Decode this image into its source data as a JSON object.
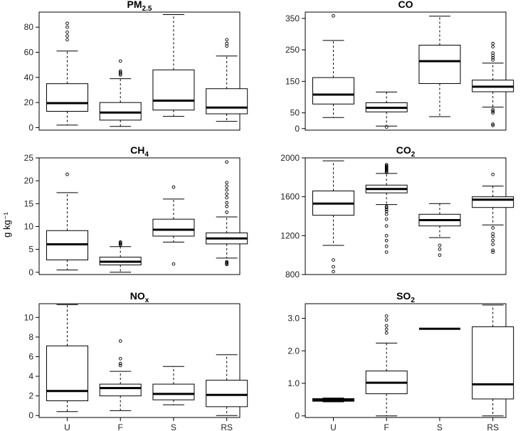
{
  "ylabel": "g kg⁻¹",
  "chart_data": [
    {
      "type": "boxplot",
      "title": "PM2.5",
      "title_main": "PM",
      "title_sub": "2.5",
      "categories": [
        "U",
        "F",
        "S",
        "RS"
      ],
      "ylim": [
        -2,
        92
      ],
      "yticks": [
        0,
        20,
        40,
        60,
        80
      ],
      "tick_labels": [
        "0",
        "20",
        "40",
        "60",
        "80"
      ],
      "show_x_labels": false,
      "boxes": [
        {
          "whisker_low": 2,
          "q1": 13,
          "median": 19.5,
          "q3": 35,
          "whisker_high": 61,
          "outliers": [
            70,
            73,
            76,
            80,
            83
          ]
        },
        {
          "whisker_low": 1,
          "q1": 6,
          "median": 12,
          "q3": 20,
          "whisker_high": 39,
          "outliers": [
            42,
            43,
            44,
            45,
            53
          ]
        },
        {
          "whisker_low": 9,
          "q1": 14,
          "median": 21.5,
          "q3": 46,
          "whisker_high": 90,
          "outliers": []
        },
        {
          "whisker_low": 5,
          "q1": 11,
          "median": 16,
          "q3": 31,
          "whisker_high": 57,
          "outliers": [
            65,
            67,
            70
          ]
        }
      ]
    },
    {
      "type": "boxplot",
      "title": "CO",
      "title_main": "CO",
      "title_sub": "",
      "categories": [
        "U",
        "F",
        "S",
        "RS"
      ],
      "ylim": [
        -5,
        370
      ],
      "yticks": [
        0,
        50,
        150,
        250,
        350
      ],
      "tick_labels": [
        "0",
        "50",
        "150",
        "250",
        "350"
      ],
      "show_x_labels": false,
      "boxes": [
        {
          "whisker_low": 35,
          "q1": 78,
          "median": 108,
          "q3": 162,
          "whisker_high": 280,
          "outliers": [
            358
          ]
        },
        {
          "whisker_low": 8,
          "q1": 53,
          "median": 66,
          "q3": 82,
          "whisker_high": 116,
          "outliers": [
            5
          ]
        },
        {
          "whisker_low": 38,
          "q1": 143,
          "median": 214,
          "q3": 265,
          "whisker_high": 357,
          "outliers": []
        },
        {
          "whisker_low": 68,
          "q1": 117,
          "median": 133,
          "q3": 154,
          "whisker_high": 208,
          "outliers": [
            10,
            14,
            50,
            55,
            60,
            218,
            225,
            232,
            240,
            260,
            270
          ]
        }
      ]
    },
    {
      "type": "boxplot",
      "title": "CH4",
      "title_main": "CH",
      "title_sub": "4",
      "categories": [
        "U",
        "F",
        "S",
        "RS"
      ],
      "ylim": [
        -0.5,
        25
      ],
      "yticks": [
        0,
        5,
        10,
        15,
        20,
        25
      ],
      "tick_labels": [
        "0",
        "5",
        "10",
        "15",
        "20",
        "25"
      ],
      "show_x_labels": false,
      "boxes": [
        {
          "whisker_low": 0.5,
          "q1": 2.7,
          "median": 6.1,
          "q3": 9.1,
          "whisker_high": 17.4,
          "outliers": [
            21.4
          ]
        },
        {
          "whisker_low": 0,
          "q1": 1.6,
          "median": 2.3,
          "q3": 3.3,
          "whisker_high": 5.6,
          "outliers": [
            6.0,
            6.2,
            6.4,
            6.6
          ]
        },
        {
          "whisker_low": 6.6,
          "q1": 7.9,
          "median": 9.3,
          "q3": 11.6,
          "whisker_high": 16.0,
          "outliers": [
            1.8,
            18.6
          ]
        },
        {
          "whisker_low": 3.1,
          "q1": 6.2,
          "median": 7.4,
          "q3": 8.6,
          "whisker_high": 12.1,
          "outliers": [
            1.7,
            1.9,
            2.1,
            2.3,
            13.1,
            14.4,
            15.2,
            16.3,
            17.1,
            18.0,
            18.8,
            19.6,
            24.1
          ]
        }
      ]
    },
    {
      "type": "boxplot",
      "title": "CO2",
      "title_main": "CO",
      "title_sub": "2",
      "categories": [
        "U",
        "F",
        "S",
        "RS"
      ],
      "ylim": [
        800,
        2000
      ],
      "yticks": [
        800,
        1200,
        1600,
        2000
      ],
      "tick_labels": [
        "800",
        "1200",
        "1600",
        "2000"
      ],
      "show_x_labels": false,
      "boxes": [
        {
          "whisker_low": 1100,
          "q1": 1410,
          "median": 1530,
          "q3": 1660,
          "whisker_high": 1970,
          "outliers": [
            830,
            880,
            950
          ]
        },
        {
          "whisker_low": 1520,
          "q1": 1640,
          "median": 1680,
          "q3": 1720,
          "whisker_high": 1840,
          "outliers": [
            1030,
            1090,
            1150,
            1200,
            1300,
            1370,
            1420,
            1450,
            1470,
            1490,
            1500,
            1850,
            1860,
            1870,
            1880,
            1890,
            1900,
            1910,
            1920,
            1930
          ]
        },
        {
          "whisker_low": 1180,
          "q1": 1300,
          "median": 1360,
          "q3": 1420,
          "whisker_high": 1530,
          "outliers": [
            1000,
            1060,
            1100
          ]
        },
        {
          "whisker_low": 1310,
          "q1": 1490,
          "median": 1570,
          "q3": 1600,
          "whisker_high": 1710,
          "outliers": [
            1030,
            1050,
            1110,
            1150,
            1190,
            1220,
            1280,
            1830
          ]
        }
      ]
    },
    {
      "type": "boxplot",
      "title": "NOx",
      "title_main": "NO",
      "title_sub": "x",
      "categories": [
        "U",
        "F",
        "S",
        "RS"
      ],
      "ylim": [
        -0.2,
        11.4
      ],
      "yticks": [
        0,
        2,
        4,
        6,
        8,
        10
      ],
      "tick_labels": [
        "0",
        "2",
        "4",
        "6",
        "8",
        "10"
      ],
      "show_x_labels": true,
      "boxes": [
        {
          "whisker_low": 0.4,
          "q1": 1.5,
          "median": 2.5,
          "q3": 7.1,
          "whisker_high": 11.3,
          "outliers": []
        },
        {
          "whisker_low": 0.5,
          "q1": 2.0,
          "median": 2.8,
          "q3": 3.2,
          "whisker_high": 4.5,
          "outliers": [
            5.1,
            5.3,
            5.8,
            7.6
          ]
        },
        {
          "whisker_low": 1.1,
          "q1": 1.6,
          "median": 2.2,
          "q3": 3.2,
          "whisker_high": 5.0,
          "outliers": []
        },
        {
          "whisker_low": 0.0,
          "q1": 0.9,
          "median": 2.1,
          "q3": 3.6,
          "whisker_high": 6.2,
          "outliers": []
        }
      ]
    },
    {
      "type": "boxplot",
      "title": "SO2",
      "title_main": "SO",
      "title_sub": "2",
      "categories": [
        "U",
        "F",
        "S",
        "RS"
      ],
      "ylim": [
        -0.05,
        3.45
      ],
      "yticks": [
        0,
        1.0,
        2.0,
        3.0
      ],
      "tick_labels": [
        "0",
        "1.0",
        "2.0",
        "3.0"
      ],
      "show_x_labels": true,
      "boxes": [
        {
          "whisker_low": 0.43,
          "q1": 0.45,
          "median": 0.49,
          "q3": 0.53,
          "whisker_high": 0.55,
          "outliers": []
        },
        {
          "whisker_low": 0.0,
          "q1": 0.68,
          "median": 1.02,
          "q3": 1.38,
          "whisker_high": 2.24,
          "outliers": [
            2.55,
            2.66,
            2.77,
            2.95,
            3.07
          ]
        },
        {
          "whisker_low": 2.68,
          "q1": 2.68,
          "median": 2.68,
          "q3": 2.68,
          "whisker_high": 2.68,
          "outliers": []
        },
        {
          "whisker_low": 0.0,
          "q1": 0.52,
          "median": 0.97,
          "q3": 2.74,
          "whisker_high": 3.41,
          "outliers": []
        }
      ]
    }
  ]
}
